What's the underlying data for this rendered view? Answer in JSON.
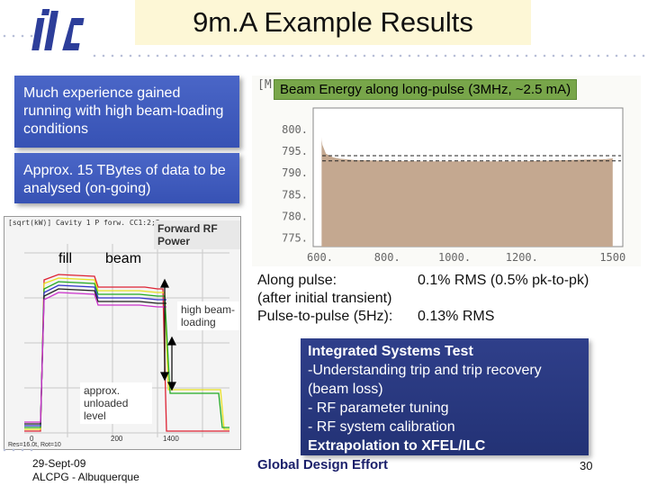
{
  "header": {
    "title": "9m.A Example Results",
    "logo_text": "ilc"
  },
  "left_box": {
    "text1": "Much experience gained running with high beam-loading conditions",
    "text2": "Approx. 15 TBytes of data to be analysed (on-going)"
  },
  "rf_plot": {
    "header_text": "[sqrt(kW)]  Cavity 1 P forw.  CC1:2;3",
    "labels": {
      "fill": "fill",
      "beam": "beam",
      "forward_rf": "Forward RF Power",
      "high_beam": "high beam-loading",
      "unloaded": "approx. unloaded level"
    },
    "axis_text": [
      "0",
      "200",
      "1400"
    ],
    "bottom_text": "Res=16.0t, Rot=10"
  },
  "chart_data": {
    "type": "area",
    "title": "Beam Energy along long-pulse (3MHz, ~2.5 mA)",
    "xlabel": "",
    "ylabel": "",
    "xlim": [
      580,
      1500
    ],
    "ylim": [
      773,
      805
    ],
    "x_ticks": [
      "600.",
      "800.",
      "1000.",
      "1200.",
      "1500"
    ],
    "y_ticks": [
      "800.",
      "795.",
      "790.",
      "785.",
      "780.",
      "775."
    ],
    "corner_label": "[M",
    "series": [
      {
        "x": [
          605,
          610,
          620,
          640,
          660,
          700,
          800,
          900,
          1000,
          1100,
          1200,
          1300,
          1400,
          1450,
          1470
        ],
        "values": [
          799.2,
          796.5,
          794.6,
          793.8,
          793.5,
          793.2,
          793.0,
          792.9,
          792.9,
          792.9,
          792.9,
          793.1,
          793.3,
          793.4,
          793.6
        ]
      }
    ],
    "reference_lines": [
      794.0,
      792.8
    ]
  },
  "stats": {
    "line1_label": "Along pulse:",
    "line1_value": "0.1% RMS (0.5% pk-to-pk)",
    "line2": "(after initial transient)",
    "line3_label": "Pulse-to-pulse (5Hz):",
    "line3_value": "0.13% RMS"
  },
  "ist": {
    "heading": "Integrated Systems Test",
    "items": [
      "-Understanding trip and trip recovery (beam loss)",
      "- RF parameter tuning",
      "- RF system calibration"
    ],
    "footer": "Extrapolation to XFEL/ILC"
  },
  "footer": {
    "date": "29-Sept-09",
    "event": "ALCPG - Albuquerque",
    "org": "Global Design Effort",
    "page": "30"
  }
}
